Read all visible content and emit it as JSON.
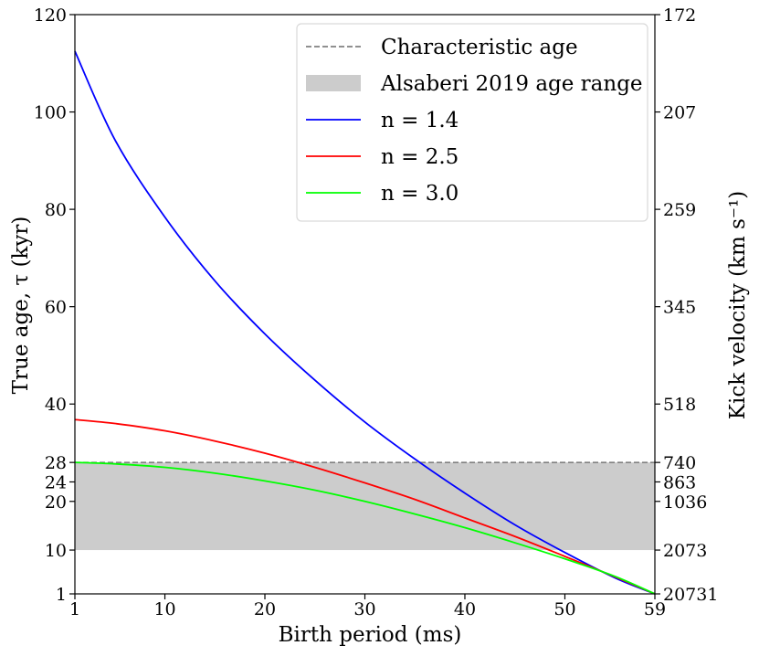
{
  "chart_data": {
    "type": "line",
    "xlabel": "Birth period (ms)",
    "ylabel": "True age, τ (kyr)",
    "y2label": "Kick velocity (km s⁻¹)",
    "xlim": [
      1,
      59
    ],
    "ylim": [
      1,
      120
    ],
    "x_ticks": [
      1,
      10,
      20,
      30,
      40,
      50,
      59
    ],
    "y_ticks": [
      1,
      10,
      20,
      24,
      28,
      40,
      60,
      80,
      100,
      120
    ],
    "y2_ticks": [
      {
        "age": 120,
        "label": "172"
      },
      {
        "age": 100,
        "label": "207"
      },
      {
        "age": 80,
        "label": "259"
      },
      {
        "age": 60,
        "label": "345"
      },
      {
        "age": 40,
        "label": "518"
      },
      {
        "age": 28,
        "label": "740"
      },
      {
        "age": 24,
        "label": "863"
      },
      {
        "age": 20,
        "label": "1036"
      },
      {
        "age": 10,
        "label": "2073"
      },
      {
        "age": 1,
        "label": "20731"
      }
    ],
    "band": {
      "name": "Alsaberi 2019 age range",
      "y0": 10,
      "y1": 28,
      "color": "#cccccc"
    },
    "reference_line": {
      "name": "Characteristic age",
      "y": 28,
      "color": "#808080"
    },
    "series": [
      {
        "name": "n = 1.4",
        "color": "#0000ff",
        "x": [
          1,
          5,
          10,
          15,
          20,
          25,
          30,
          35,
          40,
          45,
          50,
          55,
          59
        ],
        "y": [
          112.5,
          94.3,
          78.4,
          65.3,
          54.4,
          44.9,
          36.3,
          28.7,
          21.7,
          15.2,
          9.5,
          4.3,
          1
        ]
      },
      {
        "name": "n = 2.5",
        "color": "#ff0000",
        "x": [
          1,
          5,
          10,
          15,
          20,
          25,
          30,
          35,
          40,
          45,
          50,
          55,
          59
        ],
        "y": [
          36.8,
          36.0,
          34.5,
          32.4,
          29.9,
          27.0,
          23.8,
          20.4,
          16.6,
          12.8,
          8.7,
          4.5,
          1
        ]
      },
      {
        "name": "n = 3.0",
        "color": "#00ff00",
        "x": [
          1,
          5,
          10,
          15,
          20,
          25,
          30,
          35,
          40,
          45,
          50,
          55,
          59
        ],
        "y": [
          28.0,
          27.7,
          27.0,
          25.8,
          24.2,
          22.3,
          20.0,
          17.4,
          14.6,
          11.5,
          8.2,
          4.6,
          1
        ]
      }
    ],
    "legend": {
      "placement": "top-right",
      "entries": [
        {
          "label": "Characteristic age",
          "kind": "dashed",
          "color": "#808080"
        },
        {
          "label": "Alsaberi 2019 age range",
          "kind": "patch",
          "color": "#cccccc"
        },
        {
          "label": "n = 1.4",
          "kind": "line",
          "color": "#0000ff"
        },
        {
          "label": "n = 2.5",
          "kind": "line",
          "color": "#ff0000"
        },
        {
          "label": "n = 3.0",
          "kind": "line",
          "color": "#00ff00"
        }
      ]
    }
  }
}
